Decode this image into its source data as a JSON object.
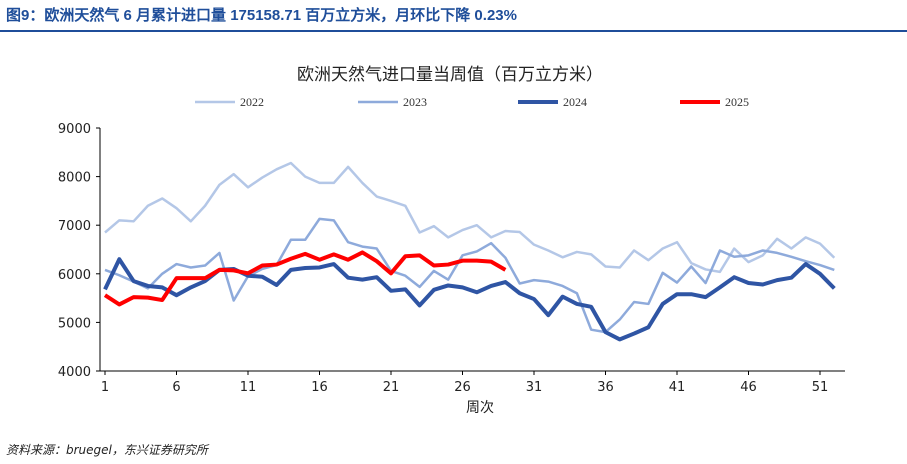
{
  "figure_title": "图9：欧洲天然气 6 月累计进口量 175158.71 百万立方米，月环比下降 0.23%",
  "source": "资料来源：bruegel，东兴证券研究所",
  "chart_data": {
    "type": "line",
    "title": "欧洲天然气进口量当周值（百万立方米）",
    "xlabel": "周次",
    "ylabel": "",
    "ylim": [
      4000,
      9000
    ],
    "yticks": [
      "4000",
      "5000",
      "6000",
      "7000",
      "8000",
      "9000"
    ],
    "xticks": [
      "1",
      "6",
      "11",
      "16",
      "21",
      "26",
      "31",
      "36",
      "41",
      "46",
      "51"
    ],
    "grid": false,
    "legend_position": "top",
    "series": [
      {
        "name": "2022",
        "color": "#b4c7e7",
        "values": [
          6850,
          7100,
          7080,
          7400,
          7550,
          7350,
          7080,
          7400,
          7830,
          8050,
          7780,
          7980,
          8150,
          8280,
          8000,
          7870,
          7870,
          8200,
          7870,
          7590,
          7500,
          7400,
          6850,
          6980,
          6750,
          6900,
          7000,
          6750,
          6880,
          6860,
          6600,
          6480,
          6340,
          6450,
          6400,
          6150,
          6130,
          6480,
          6280,
          6520,
          6650,
          6220,
          6090,
          6040,
          6520,
          6240,
          6380,
          6720,
          6520,
          6750,
          6620,
          6330
        ]
      },
      {
        "name": "2023",
        "color": "#8eaadb",
        "values": [
          6080,
          5970,
          5840,
          5700,
          6000,
          6200,
          6130,
          6170,
          6430,
          5450,
          5950,
          6100,
          6180,
          6700,
          6700,
          7130,
          7100,
          6650,
          6560,
          6520,
          6060,
          5960,
          5730,
          6060,
          5880,
          6380,
          6460,
          6630,
          6330,
          5800,
          5870,
          5840,
          5750,
          5600,
          4850,
          4800,
          5060,
          5420,
          5380,
          6020,
          5820,
          6150,
          5810,
          6480,
          6350,
          6380,
          6480,
          6430,
          6350,
          6260,
          6180,
          6080
        ]
      },
      {
        "name": "2024",
        "color": "#2f55a4",
        "values": [
          5680,
          6300,
          5850,
          5750,
          5720,
          5560,
          5720,
          5850,
          6080,
          6100,
          5960,
          5940,
          5770,
          6080,
          6120,
          6130,
          6200,
          5920,
          5880,
          5930,
          5650,
          5680,
          5350,
          5670,
          5760,
          5720,
          5620,
          5750,
          5830,
          5600,
          5480,
          5150,
          5530,
          5380,
          5320,
          4800,
          4650,
          4770,
          4900,
          5380,
          5580,
          5580,
          5520,
          5720,
          5930,
          5810,
          5780,
          5870,
          5920,
          6200,
          6000,
          5700
        ]
      },
      {
        "name": "2025",
        "color": "#ff0000",
        "values": [
          5560,
          5370,
          5520,
          5510,
          5460,
          5910,
          5910,
          5910,
          6080,
          6070,
          6010,
          6170,
          6190,
          6310,
          6410,
          6290,
          6400,
          6290,
          6440,
          6260,
          6010,
          6360,
          6380,
          6170,
          6190,
          6270,
          6270,
          6250,
          6080
        ]
      }
    ]
  }
}
